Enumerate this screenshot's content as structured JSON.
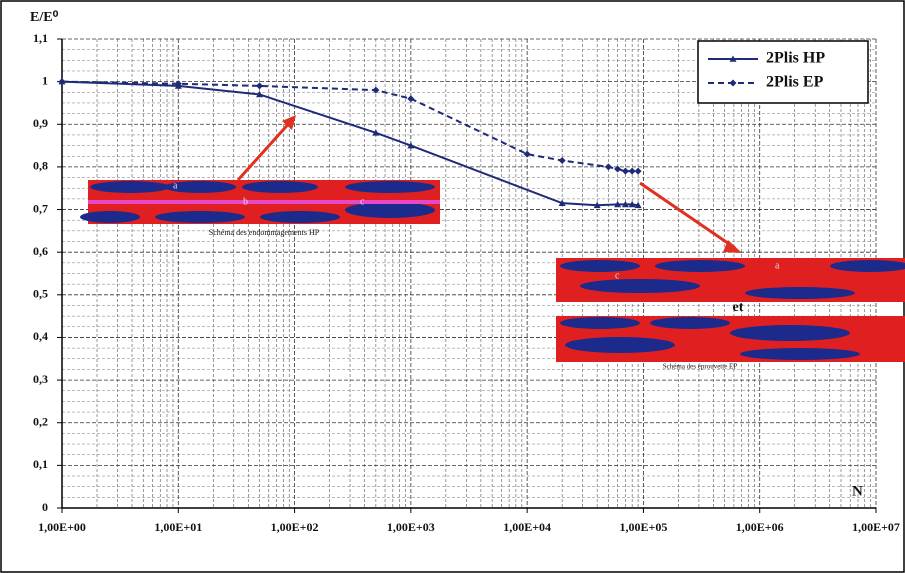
{
  "chart_data": {
    "type": "line",
    "xscale": "log",
    "grid": true,
    "legend": "top-right",
    "y_label": "E/E⁰",
    "x_label": "N",
    "xlim": [
      1,
      10000000
    ],
    "ylim": [
      0,
      1.1
    ],
    "xticks": [
      {
        "value": 1,
        "label": "1,00E+00"
      },
      {
        "value": 10,
        "label": "1,00E+01"
      },
      {
        "value": 100,
        "label": "1,00E+02"
      },
      {
        "value": 1000,
        "label": "1,00E+03"
      },
      {
        "value": 10000,
        "label": "1,00E+04"
      },
      {
        "value": 100000,
        "label": "1,00E+05"
      },
      {
        "value": 1000000,
        "label": "1,00E+06"
      },
      {
        "value": 10000000,
        "label": "1,00E+07"
      }
    ],
    "yticks": [
      0,
      {
        "value": 0.1,
        "label": "0,1"
      },
      {
        "value": 0.2,
        "label": "0,2"
      },
      {
        "value": 0.3,
        "label": "0,3"
      },
      {
        "value": 0.4,
        "label": "0,4"
      },
      {
        "value": 0.5,
        "label": "0,5"
      },
      {
        "value": 0.6,
        "label": "0,6"
      },
      {
        "value": 0.7,
        "label": "0,7"
      },
      {
        "value": 0.8,
        "label": "0,8"
      },
      {
        "value": 0.9,
        "label": "0,9"
      },
      1,
      {
        "value": 1.1,
        "label": "1,1"
      }
    ],
    "series": [
      {
        "name": "2Plis HP",
        "color": "#1f2a78",
        "dash": false,
        "marker": "triangle",
        "x": [
          1,
          10,
          50,
          500,
          1000,
          20000,
          40000,
          60000,
          70000,
          80000,
          90000
        ],
        "values": [
          1,
          0.99,
          0.97,
          0.88,
          0.85,
          0.715,
          0.71,
          0.712,
          0.712,
          0.712,
          0.71
        ]
      },
      {
        "name": "2Plis EP",
        "color": "#1f2a78",
        "dash": true,
        "marker": "diamond",
        "x": [
          1,
          10,
          50,
          500,
          1000,
          10000,
          20000,
          50000,
          60000,
          70000,
          80000,
          90000
        ],
        "values": [
          1,
          0.995,
          0.99,
          0.98,
          0.96,
          0.83,
          0.815,
          0.8,
          0.795,
          0.79,
          0.79,
          0.79
        ]
      }
    ],
    "annotations": {
      "hp_caption": "Schéma des endommagements HP",
      "ep_caption": "Schéma des éprouvette EP",
      "et": "et",
      "hp_letters": [
        "a",
        "b",
        "c"
      ],
      "ep_letters": [
        "c",
        "a"
      ]
    }
  }
}
